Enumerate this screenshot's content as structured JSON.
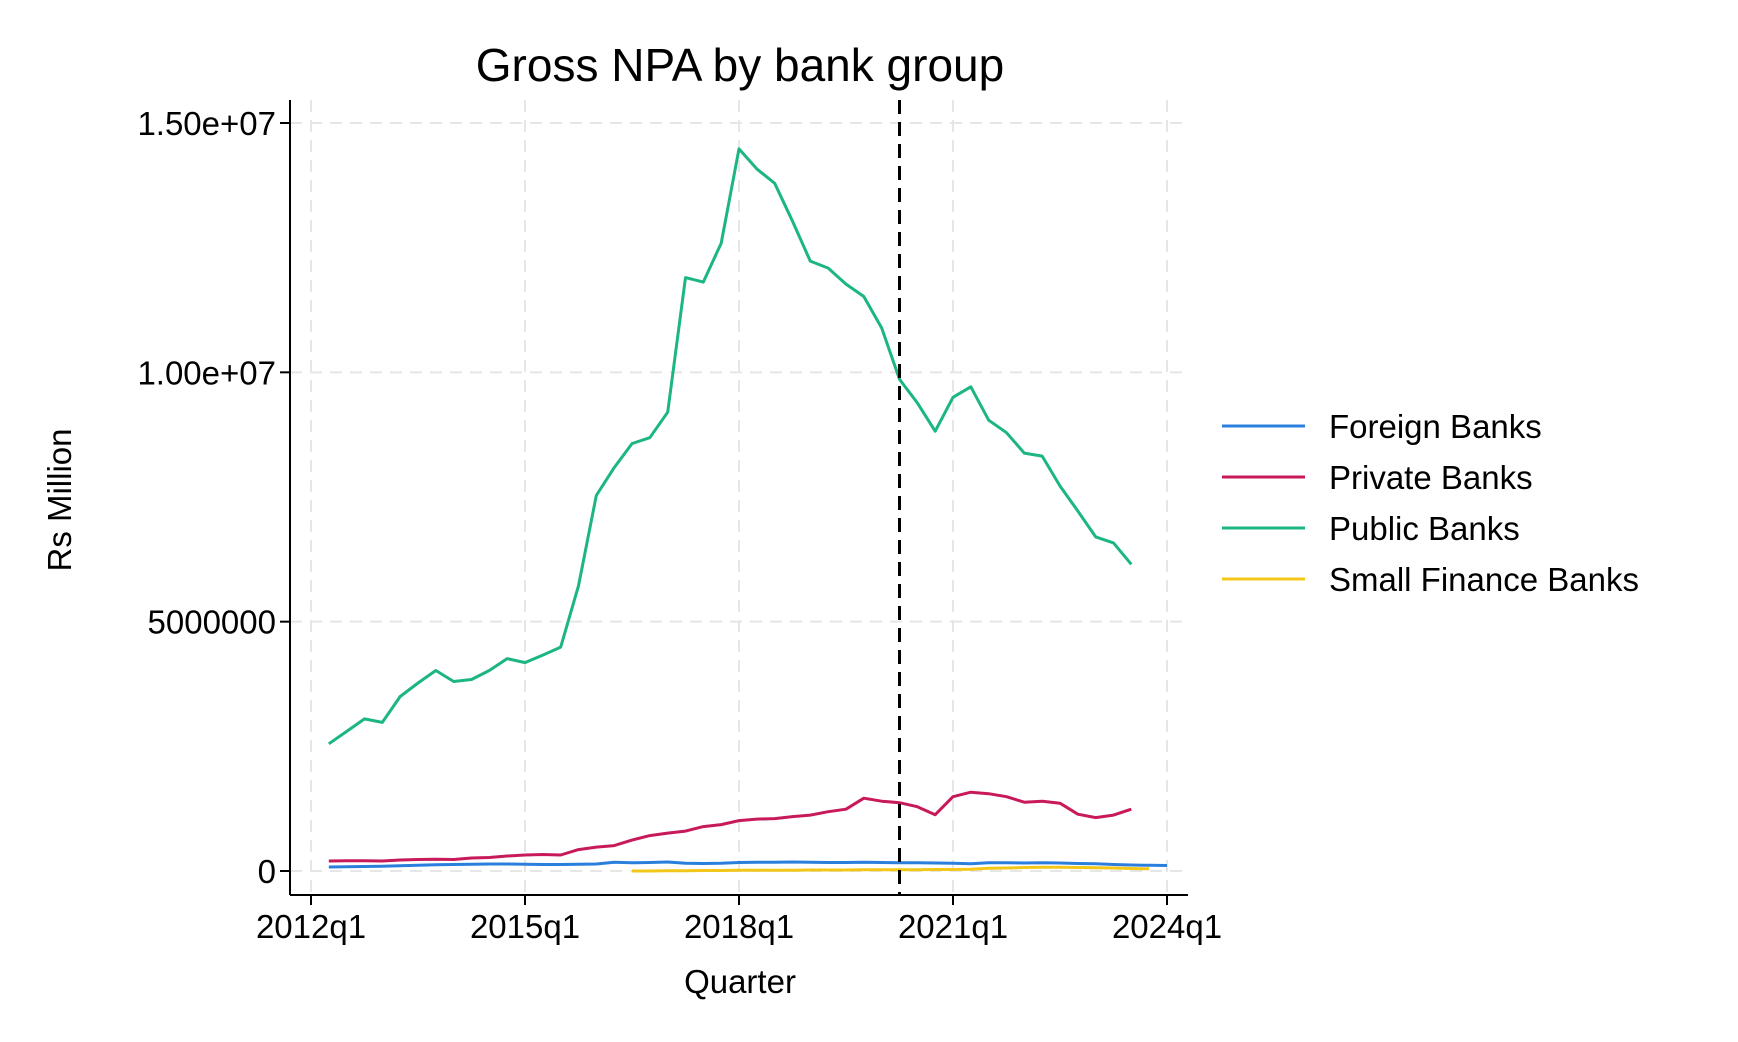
{
  "chart_data": {
    "type": "line",
    "title": "Gross NPA by bank group",
    "xlabel": "Quarter",
    "ylabel": "Rs Million",
    "xlim": [
      "2012q1",
      "2024q1"
    ],
    "ylim": [
      0,
      15000000
    ],
    "x_ticks": [
      "2012q1",
      "2015q1",
      "2018q1",
      "2021q1",
      "2024q1"
    ],
    "y_ticks": [
      {
        "value": 0,
        "label": "0"
      },
      {
        "value": 5000000,
        "label": "5000000"
      },
      {
        "value": 10000000,
        "label": "1.00e+07"
      },
      {
        "value": 15000000,
        "label": "1.50e+07"
      }
    ],
    "grid": true,
    "legend_position": "right",
    "reference_line": {
      "x": "2020q2",
      "style": "dashed",
      "color": "#000000"
    },
    "series": [
      {
        "name": "Foreign Banks",
        "color": "#2a7fdc",
        "start": "2012q2",
        "values": [
          80000,
          85000,
          90000,
          95000,
          105000,
          115000,
          125000,
          130000,
          135000,
          140000,
          140000,
          135000,
          130000,
          130000,
          135000,
          140000,
          175000,
          165000,
          170000,
          180000,
          155000,
          150000,
          155000,
          170000,
          175000,
          175000,
          180000,
          175000,
          170000,
          170000,
          175000,
          170000,
          165000,
          165000,
          160000,
          155000,
          145000,
          165000,
          165000,
          160000,
          165000,
          160000,
          150000,
          145000,
          130000,
          120000,
          115000,
          110000
        ]
      },
      {
        "name": "Private Banks",
        "color": "#c8195a",
        "start": "2012q2",
        "values": [
          200000,
          205000,
          205000,
          200000,
          220000,
          230000,
          235000,
          230000,
          260000,
          270000,
          300000,
          320000,
          330000,
          320000,
          430000,
          480000,
          510000,
          620000,
          710000,
          760000,
          800000,
          890000,
          930000,
          1010000,
          1040000,
          1050000,
          1090000,
          1120000,
          1190000,
          1240000,
          1460000,
          1400000,
          1370000,
          1290000,
          1130000,
          1490000,
          1580000,
          1550000,
          1490000,
          1380000,
          1400000,
          1360000,
          1140000,
          1070000,
          1120000,
          1240000
        ]
      },
      {
        "name": "Public Banks",
        "color": "#1cb584",
        "start": "2012q2",
        "values": [
          2550000,
          2800000,
          3050000,
          2980000,
          3500000,
          3770000,
          4020000,
          3800000,
          3840000,
          4020000,
          4260000,
          4180000,
          4330000,
          4490000,
          5720000,
          7530000,
          8090000,
          8570000,
          8690000,
          9200000,
          11900000,
          11810000,
          12590000,
          14480000,
          14080000,
          13790000,
          13030000,
          12230000,
          12090000,
          11770000,
          11520000,
          10890000,
          9860000,
          9390000,
          8820000,
          9500000,
          9710000,
          9040000,
          8790000,
          8380000,
          8320000,
          7720000,
          7220000,
          6700000,
          6580000,
          6150000
        ]
      },
      {
        "name": "Small Finance Banks",
        "color": "#f3c719",
        "start": "2016q3",
        "values": [
          0,
          0,
          5000,
          5000,
          10000,
          10000,
          15000,
          15000,
          15000,
          15000,
          20000,
          20000,
          20000,
          25000,
          25000,
          25000,
          25000,
          30000,
          30000,
          35000,
          55000,
          60000,
          70000,
          75000,
          75000,
          70000,
          65000,
          60000,
          50000,
          45000
        ]
      }
    ]
  }
}
